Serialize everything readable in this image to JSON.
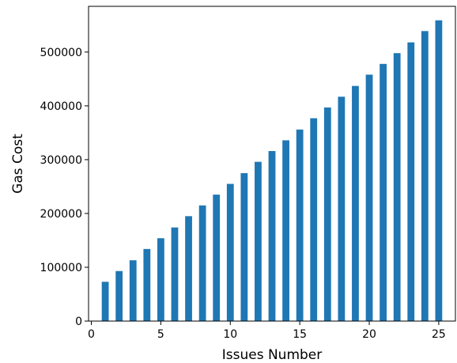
{
  "chart_data": {
    "type": "bar",
    "xlabel": "Issues Number",
    "ylabel": "Gas Cost",
    "xlim": [
      -0.2,
      26.2
    ],
    "ylim": [
      0,
      585000
    ],
    "x_ticks": [
      0,
      5,
      10,
      15,
      20,
      25
    ],
    "y_ticks": [
      0,
      100000,
      200000,
      300000,
      400000,
      500000
    ],
    "grid": false,
    "bar_color": "#1f77b4",
    "x": [
      1,
      2,
      3,
      4,
      5,
      6,
      7,
      8,
      9,
      10,
      11,
      12,
      13,
      14,
      15,
      16,
      17,
      18,
      19,
      20,
      21,
      22,
      23,
      24,
      25
    ],
    "values": [
      73000,
      93000,
      113000,
      134000,
      154000,
      174000,
      195000,
      215000,
      235000,
      255000,
      275000,
      296000,
      316000,
      336000,
      356000,
      377000,
      397000,
      417000,
      437000,
      458000,
      478000,
      498000,
      518000,
      539000,
      559000
    ]
  }
}
